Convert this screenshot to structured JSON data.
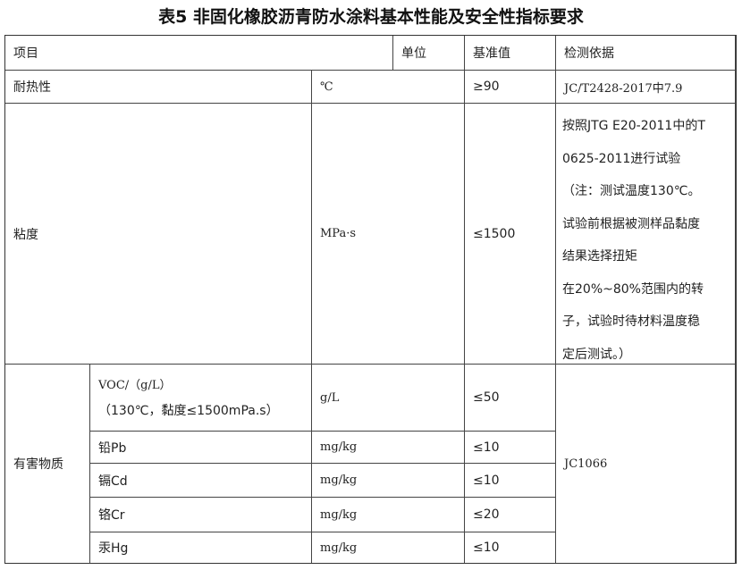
{
  "title": "表5 非固化橡胶沥青防水涂料基本性能及安全性指标要求",
  "header": {
    "item": "项目",
    "unit": "单位",
    "value": "基准值",
    "basis": "检测依据"
  },
  "rows": [
    {
      "item": "耐热性",
      "unit": "℃",
      "value": "≥90",
      "basis": "JC/T2428-2017中7.9"
    },
    {
      "item": "粘度",
      "unit": "MPa·s",
      "value": "≤1500",
      "basis_lines": [
        "按照JTG E20-2011中的T",
        "0625-2011进行试验",
        "（注：测试温度130℃。",
        "试验前根据被测样品黏度",
        "结果选择扭矩",
        "在20%~80%范围内的转",
        "子，试验时待材料温度稳",
        "定后测试。）"
      ]
    }
  ],
  "hazard": {
    "group": "有害物质",
    "basis": "JC1066",
    "items": [
      {
        "name_lines": [
          "VOC/（g/L）",
          "（130℃，黏度≤1500mPa.s）"
        ],
        "unit": "g/L",
        "value": "≤50"
      },
      {
        "name": "铅Pb",
        "unit": "mg/kg",
        "value": "≤10"
      },
      {
        "name": "镉Cd",
        "unit": "mg/kg",
        "value": "≤10"
      },
      {
        "name": "铬Cr",
        "unit": "mg/kg",
        "value": "≤20"
      },
      {
        "name": "汞Hg",
        "unit": "mg/kg",
        "value": "≤10"
      }
    ]
  }
}
